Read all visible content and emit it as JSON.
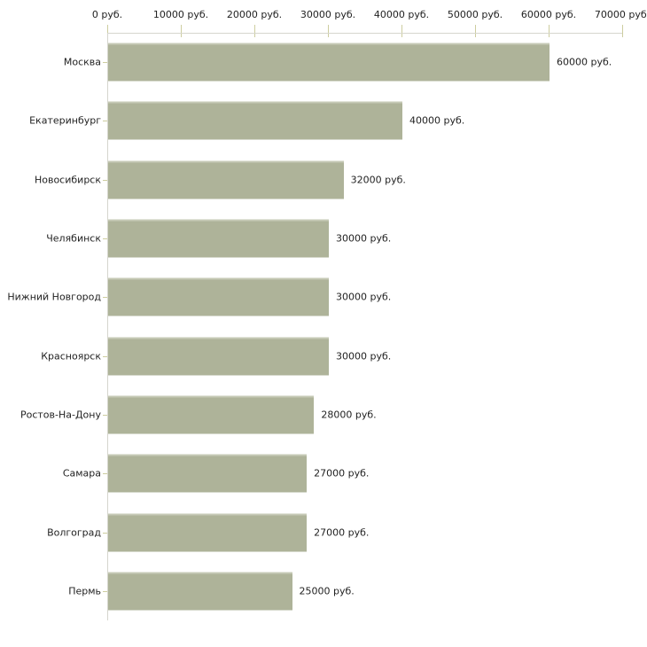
{
  "chart_data": {
    "type": "bar",
    "orientation": "horizontal",
    "categories": [
      "Москва",
      "Екатеринбург",
      "Новосибирск",
      "Челябинск",
      "Нижний Новгород",
      "Красноярск",
      "Ростов-На-Дону",
      "Самара",
      "Волгоград",
      "Пермь"
    ],
    "values": [
      60000,
      40000,
      32000,
      30000,
      30000,
      30000,
      28000,
      27000,
      27000,
      25000
    ],
    "value_labels": [
      "60000 руб.",
      "40000 руб.",
      "32000 руб.",
      "30000 руб.",
      "30000 руб.",
      "30000 руб.",
      "28000 руб.",
      "27000 руб.",
      "27000 руб.",
      "25000 руб."
    ],
    "x_ticks": [
      0,
      10000,
      20000,
      30000,
      40000,
      50000,
      60000,
      70000
    ],
    "x_tick_labels": [
      "0 руб.",
      "10000 руб.",
      "20000 руб.",
      "30000 руб.",
      "40000 руб.",
      "50000 руб.",
      "60000 руб.",
      "70000 руб."
    ],
    "xlim": [
      0,
      70000
    ],
    "unit": "руб.",
    "grid": false,
    "legend": false,
    "colors": {
      "bar_fill": "#aeb399",
      "bar_edge": "#c6cab6",
      "axis_line": "#d6d6ce",
      "tick_mark": "#cdcd9f",
      "text": "#222222",
      "background": "#ffffff"
    }
  }
}
